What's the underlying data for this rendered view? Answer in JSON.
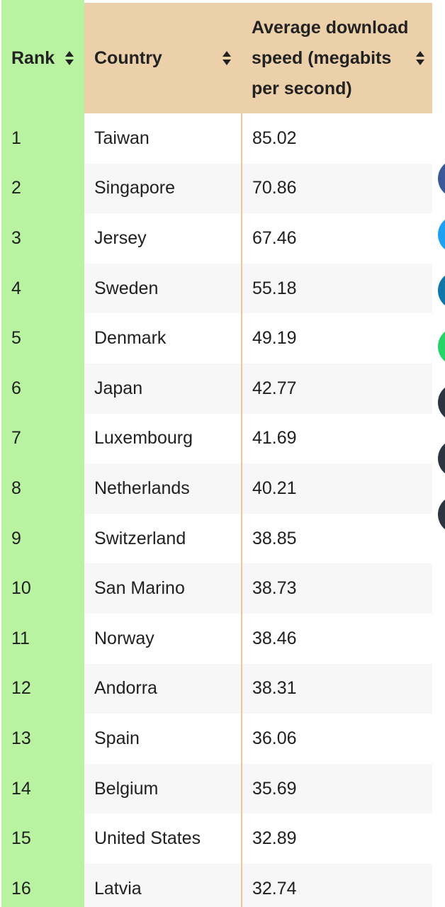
{
  "table": {
    "headers": {
      "rank": "Rank",
      "country": "Country",
      "speed_line1": "Average download",
      "speed_line2": "speed (megabits",
      "speed_line3": "per second)"
    },
    "rows": [
      {
        "rank": "1",
        "country": "Taiwan",
        "speed": "85.02"
      },
      {
        "rank": "2",
        "country": "Singapore",
        "speed": "70.86"
      },
      {
        "rank": "3",
        "country": "Jersey",
        "speed": "67.46"
      },
      {
        "rank": "4",
        "country": "Sweden",
        "speed": "55.18"
      },
      {
        "rank": "5",
        "country": "Denmark",
        "speed": "49.19"
      },
      {
        "rank": "6",
        "country": "Japan",
        "speed": "42.77"
      },
      {
        "rank": "7",
        "country": "Luxembourg",
        "speed": "41.69"
      },
      {
        "rank": "8",
        "country": "Netherlands",
        "speed": "40.21"
      },
      {
        "rank": "9",
        "country": "Switzerland",
        "speed": "38.85"
      },
      {
        "rank": "10",
        "country": "San Marino",
        "speed": "38.73"
      },
      {
        "rank": "11",
        "country": "Norway",
        "speed": "38.46"
      },
      {
        "rank": "12",
        "country": "Andorra",
        "speed": "38.31"
      },
      {
        "rank": "13",
        "country": "Spain",
        "speed": "36.06"
      },
      {
        "rank": "14",
        "country": "Belgium",
        "speed": "35.69"
      },
      {
        "rank": "15",
        "country": "United States",
        "speed": "32.89"
      },
      {
        "rank": "16",
        "country": "Latvia",
        "speed": "32.74"
      }
    ]
  },
  "colors": {
    "rank_column": "#b9f3a1",
    "header_bg": "#ecd0a9",
    "stripe": "#f7f7f7",
    "divider": "#ecc79e"
  },
  "icons": {
    "sort": "sort-updown-icon"
  },
  "share_buttons": [
    {
      "icon": "facebook-icon",
      "color": "#3b5998"
    },
    {
      "icon": "twitter-icon",
      "color": "#1da1f2"
    },
    {
      "icon": "linkedin-icon",
      "color": "#0e76a8"
    },
    {
      "icon": "whatsapp-icon",
      "color": "#25d366"
    },
    {
      "icon": "share-icon",
      "color": "#2c3540"
    },
    {
      "icon": "share-icon",
      "color": "#2c3540"
    },
    {
      "icon": "share-icon",
      "color": "#2c3540"
    }
  ]
}
